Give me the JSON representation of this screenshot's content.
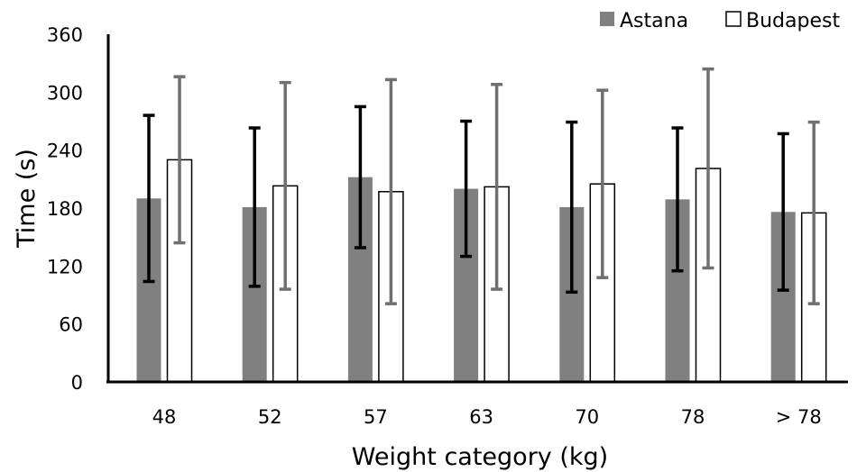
{
  "chart_data": {
    "type": "bar",
    "xlabel": "Weight category (kg)",
    "ylabel": "Time (s)",
    "ylim": [
      0,
      360
    ],
    "yticks": [
      0,
      60,
      120,
      180,
      240,
      300,
      360
    ],
    "grid": false,
    "legend_position": "top-right",
    "categories": [
      "48",
      "52",
      "57",
      "63",
      "70",
      "78",
      "> 78"
    ],
    "series": [
      {
        "name": "Astana",
        "color": "#808080",
        "values": [
          190,
          181,
          212,
          200,
          181,
          189,
          176
        ],
        "error": [
          86,
          82,
          73,
          70,
          88,
          74,
          81
        ],
        "error_color": "#000000"
      },
      {
        "name": "Budapest",
        "color": "#ffffff",
        "values": [
          230,
          203,
          197,
          202,
          205,
          221,
          175
        ],
        "error": [
          86,
          107,
          116,
          106,
          97,
          103,
          94
        ],
        "error_color": "#707070"
      }
    ]
  }
}
